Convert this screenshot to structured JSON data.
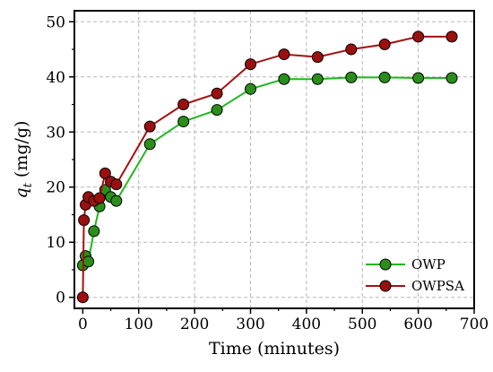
{
  "chart_data": {
    "type": "line",
    "xlabel": "Time (minutes)",
    "ylabel_var": "q",
    "ylabel_sub": "t",
    "ylabel_unit": "(mg/g)",
    "xlim": [
      -15,
      700
    ],
    "ylim": [
      -2,
      52
    ],
    "xticks": [
      0,
      100,
      200,
      300,
      400,
      500,
      600,
      700
    ],
    "yticks": [
      0,
      10,
      20,
      30,
      40,
      50
    ],
    "grid": true,
    "legend_position": "bottom-right",
    "series": [
      {
        "name": "OWP",
        "color": "#1db81d",
        "marker_color": "#2a8f1a",
        "x": [
          0,
          5,
          10,
          20,
          30,
          40,
          50,
          60,
          120,
          180,
          240,
          300,
          360,
          420,
          480,
          540,
          600,
          660
        ],
        "y": [
          5.8,
          7.5,
          6.5,
          12,
          16.5,
          19.5,
          18.2,
          17.5,
          27.8,
          31.9,
          34,
          37.8,
          39.6,
          39.6,
          39.9,
          39.9,
          39.8,
          39.8
        ]
      },
      {
        "name": "OWPSA",
        "color": "#a51010",
        "marker_color": "#9b0f0f",
        "x": [
          0,
          2,
          5,
          10,
          20,
          30,
          40,
          50,
          60,
          120,
          180,
          240,
          300,
          360,
          420,
          480,
          540,
          600,
          660
        ],
        "y": [
          0,
          14,
          16.8,
          18.2,
          17.5,
          18,
          22.5,
          21,
          20.5,
          31,
          35,
          37,
          42.3,
          44.1,
          43.6,
          45,
          45.9,
          47.3,
          47.3
        ]
      }
    ]
  }
}
